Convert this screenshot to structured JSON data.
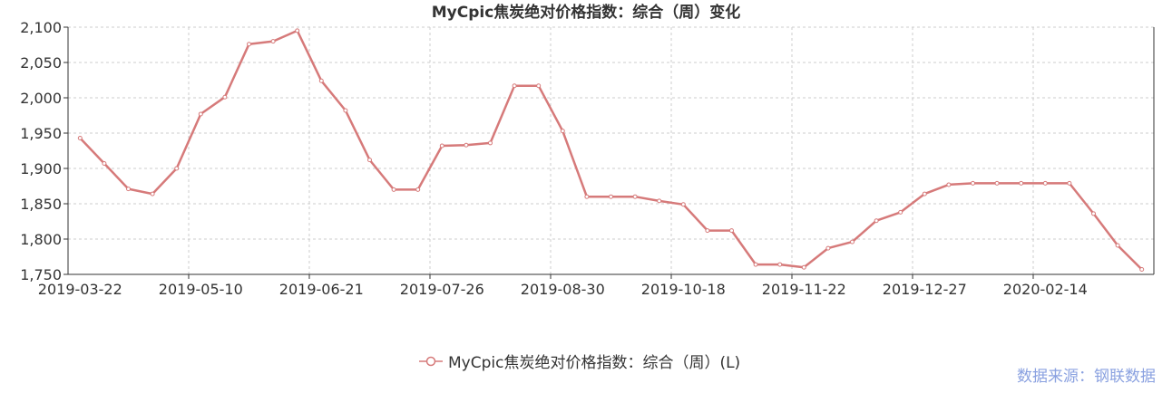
{
  "chart_data": {
    "type": "line",
    "title": "MyCpic焦炭绝对价格指数：综合（周）变化",
    "x_tick_labels": [
      {
        "index": 0,
        "label": "2019-03-22"
      },
      {
        "index": 5,
        "label": "2019-05-10"
      },
      {
        "index": 10,
        "label": "2019-06-21"
      },
      {
        "index": 15,
        "label": "2019-07-26"
      },
      {
        "index": 20,
        "label": "2019-08-30"
      },
      {
        "index": 25,
        "label": "2019-10-18"
      },
      {
        "index": 30,
        "label": "2019-11-22"
      },
      {
        "index": 35,
        "label": "2019-12-27"
      },
      {
        "index": 40,
        "label": "2020-02-14"
      }
    ],
    "ylim": [
      1750,
      2100
    ],
    "y_ticks": [
      1750,
      1800,
      1850,
      1900,
      1950,
      2000,
      2050,
      2100
    ],
    "y_tick_labels": [
      "1,750",
      "1,800",
      "1,850",
      "1,900",
      "1,950",
      "2,000",
      "2,050",
      "2,100"
    ],
    "grid": true,
    "legend_position": "bottom",
    "series": [
      {
        "name": "MyCpic焦炭绝对价格指数：综合（周）(L)",
        "color": "#d67a7a",
        "values": [
          1943,
          1907,
          1871,
          1864,
          1900,
          1977,
          2001,
          2076,
          2080,
          2095,
          2024,
          1982,
          1912,
          1870,
          1870,
          1932,
          1933,
          1936,
          2017,
          2017,
          1953,
          1860,
          1860,
          1860,
          1854,
          1849,
          1812,
          1812,
          1764,
          1764,
          1760,
          1787,
          1796,
          1826,
          1838,
          1864,
          1877,
          1879,
          1879,
          1879,
          1879,
          1879,
          1836,
          1791,
          1757
        ]
      }
    ]
  },
  "legend": {
    "label": "MyCpic焦炭绝对价格指数：综合（周）(L)"
  },
  "source": "数据来源：钢联数据"
}
